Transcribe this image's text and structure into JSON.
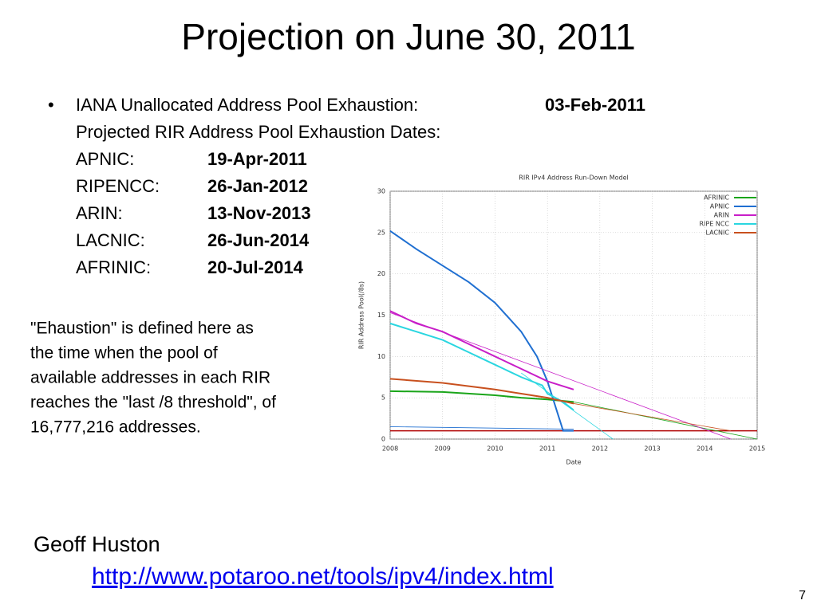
{
  "title": "Projection on June 30, 2011",
  "bullet": {
    "label": "IANA Unallocated Address Pool Exhaustion:",
    "date": "03-Feb-2011",
    "subheading": "Projected RIR Address Pool Exhaustion Dates:",
    "rirs": [
      {
        "name": "APNIC:",
        "date": "19-Apr-2011"
      },
      {
        "name": "RIPENCC:",
        "date": "26-Jan-2012"
      },
      {
        "name": "ARIN:",
        "date": "13-Nov-2013"
      },
      {
        "name": "LACNIC:",
        "date": "26-Jun-2014"
      },
      {
        "name": "AFRINIC:",
        "date": "20-Jul-2014"
      }
    ]
  },
  "note": [
    "\"Ehaustion\" is defined here as",
    "the time when the pool of",
    "available addresses in each RIR",
    "reaches the \"last /8 threshold\", of",
    "16,777,216 addresses."
  ],
  "author": "Geoff Huston",
  "link": "http://www.potaroo.net/tools/ipv4/index.html",
  "page_number": 7,
  "chart_data": {
    "type": "line",
    "title": "RIR IPv4 Address Run-Down Model",
    "xlabel": "Date",
    "ylabel": "RIR Address Pool(/8s)",
    "xlim": [
      2008,
      2015
    ],
    "xticks": [
      2008,
      2009,
      2010,
      2011,
      2012,
      2013,
      2014,
      2015
    ],
    "ylim": [
      0,
      30
    ],
    "yticks": [
      0,
      5,
      10,
      15,
      20,
      25,
      30
    ],
    "legend": "upper right",
    "threshold": {
      "value": 1,
      "color": "#b00000"
    },
    "series": [
      {
        "name": "AFRINIC",
        "color": "#1aa51a",
        "x": [
          2008,
          2009,
          2010,
          2010.5,
          2011,
          2011.5
        ],
        "values": [
          5.8,
          5.7,
          5.3,
          5.0,
          4.8,
          4.5
        ],
        "projection": {
          "x": [
            2011.5,
            2015
          ],
          "values": [
            4.5,
            0
          ]
        }
      },
      {
        "name": "APNIC",
        "color": "#1f6fd1",
        "x": [
          2008,
          2008.5,
          2009,
          2009.5,
          2010,
          2010.5,
          2010.8,
          2011,
          2011.1,
          2011.2,
          2011.3,
          2011.5
        ],
        "values": [
          25.2,
          23,
          21,
          19,
          16.5,
          13,
          10,
          7,
          5,
          3,
          1,
          1
        ],
        "projection": {
          "x": [
            2008,
            2011.5
          ],
          "values": [
            1.5,
            1.2
          ]
        }
      },
      {
        "name": "ARIN",
        "color": "#c81ec8",
        "x": [
          2008,
          2008.5,
          2009,
          2009.5,
          2010,
          2010.5,
          2011,
          2011.5
        ],
        "values": [
          15.5,
          14,
          13,
          11.5,
          10,
          8.5,
          7,
          6
        ],
        "projection": {
          "x": [
            2008,
            2014.5
          ],
          "values": [
            15.3,
            0
          ]
        }
      },
      {
        "name": "RIPE NCC",
        "color": "#2ad6e0",
        "x": [
          2008,
          2008.5,
          2009,
          2009.5,
          2010,
          2010.5,
          2010.9,
          2011,
          2011.3,
          2011.5
        ],
        "values": [
          14,
          13,
          12,
          10.5,
          9,
          7.5,
          6.5,
          5.5,
          4.5,
          3.5
        ],
        "projection": {
          "x": [
            2010.5,
            2012.25
          ],
          "values": [
            8,
            0
          ]
        }
      },
      {
        "name": "LACNIC",
        "color": "#c8501e",
        "x": [
          2008,
          2009,
          2010,
          2010.5,
          2011,
          2011.5
        ],
        "values": [
          7.3,
          6.8,
          6,
          5.5,
          5,
          4.3
        ],
        "projection": {
          "x": [
            2011.5,
            2014.5
          ],
          "values": [
            4.3,
            1
          ]
        }
      }
    ]
  }
}
